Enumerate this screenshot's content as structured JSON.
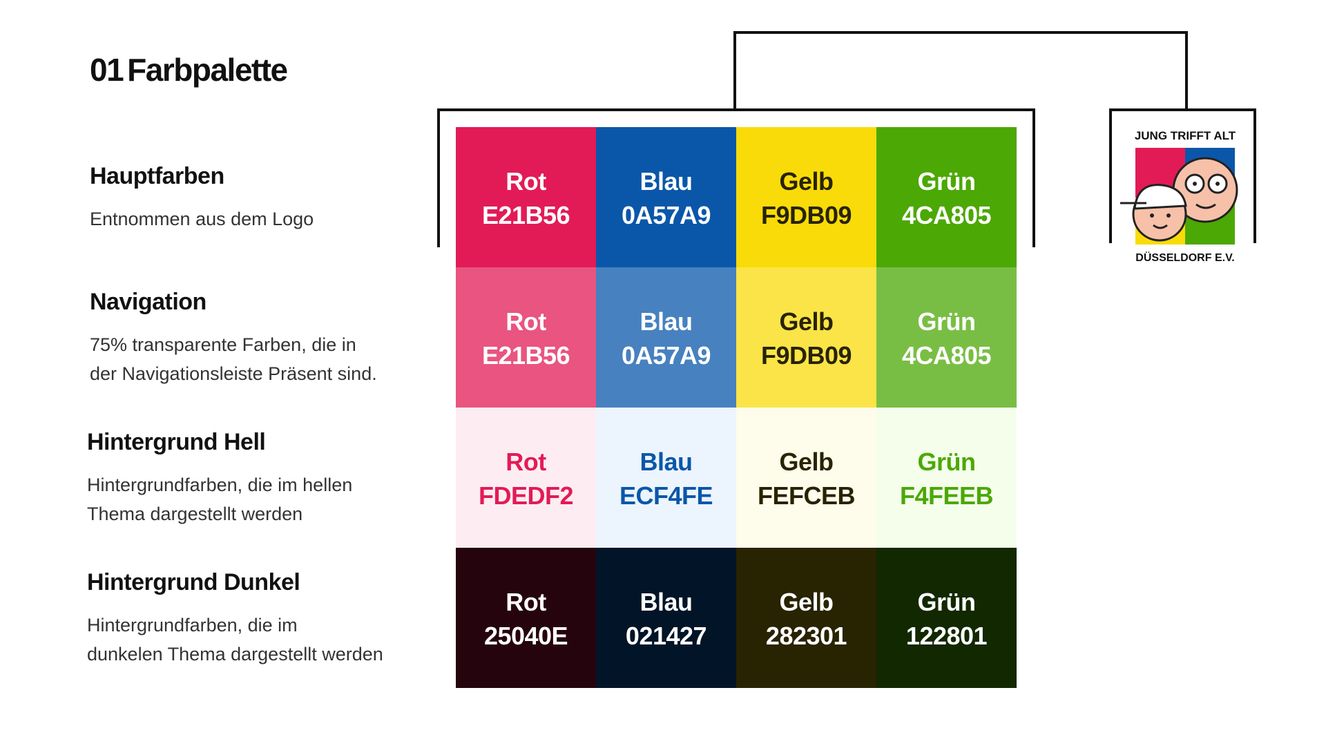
{
  "header": {
    "number": "01",
    "title": "Farbpalette"
  },
  "rows": [
    {
      "title": "Hauptfarben",
      "description": [
        "Entnommen aus dem Logo"
      ],
      "cells": [
        {
          "name": "Rot",
          "code": "E21B56",
          "bg": "#E21B56",
          "fg": "#ffffff"
        },
        {
          "name": "Blau",
          "code": "0A57A9",
          "bg": "#0A57A9",
          "fg": "#ffffff"
        },
        {
          "name": "Gelb",
          "code": "F9DB09",
          "bg": "#F9DB09",
          "fg": "#282301"
        },
        {
          "name": "Grün",
          "code": "4CA805",
          "bg": "#4CA805",
          "fg": "#ffffff"
        }
      ]
    },
    {
      "title": "Navigation",
      "description": [
        "75% transparente Farben, die in",
        "der Navigationsleiste Präsent sind."
      ],
      "cells": [
        {
          "name": "Rot",
          "code": "E21B56",
          "bg": "#E21B56BF",
          "fg": "#ffffff"
        },
        {
          "name": "Blau",
          "code": "0A57A9",
          "bg": "#0A57A9BF",
          "fg": "#ffffff"
        },
        {
          "name": "Gelb",
          "code": "F9DB09",
          "bg": "#F9DB09BF",
          "fg": "#282301"
        },
        {
          "name": "Grün",
          "code": "4CA805",
          "bg": "#4CA805BF",
          "fg": "#ffffff"
        }
      ]
    },
    {
      "title": "Hintergrund Hell",
      "description": [
        "Hintergrundfarben, die im hellen",
        "Thema dargestellt werden"
      ],
      "cells": [
        {
          "name": "Rot",
          "code": "FDEDF2",
          "bg": "#FDEDF2",
          "fg": "#E21B56"
        },
        {
          "name": "Blau",
          "code": "ECF4FE",
          "bg": "#ECF4FE",
          "fg": "#0A57A9"
        },
        {
          "name": "Gelb",
          "code": "FEFCEB",
          "bg": "#FEFCEB",
          "fg": "#282301"
        },
        {
          "name": "Grün",
          "code": "F4FEEB",
          "bg": "#F4FEEB",
          "fg": "#4CA805"
        }
      ]
    },
    {
      "title": "Hintergrund Dunkel",
      "description": [
        "Hintergrundfarben, die im",
        "dunkelen Thema dargestellt werden"
      ],
      "cells": [
        {
          "name": "Rot",
          "code": "25040E",
          "bg": "#25040E",
          "fg": "#ffffff"
        },
        {
          "name": "Blau",
          "code": "021427",
          "bg": "#021427",
          "fg": "#ffffff"
        },
        {
          "name": "Gelb",
          "code": "282301",
          "bg": "#282301",
          "fg": "#ffffff"
        },
        {
          "name": "Grün",
          "code": "122801",
          "bg": "#122801",
          "fg": "#ffffff"
        }
      ]
    }
  ],
  "logo": {
    "top": "JUNG TRIFFT ALT",
    "bottom": "DÜSSELDORF E.V."
  }
}
